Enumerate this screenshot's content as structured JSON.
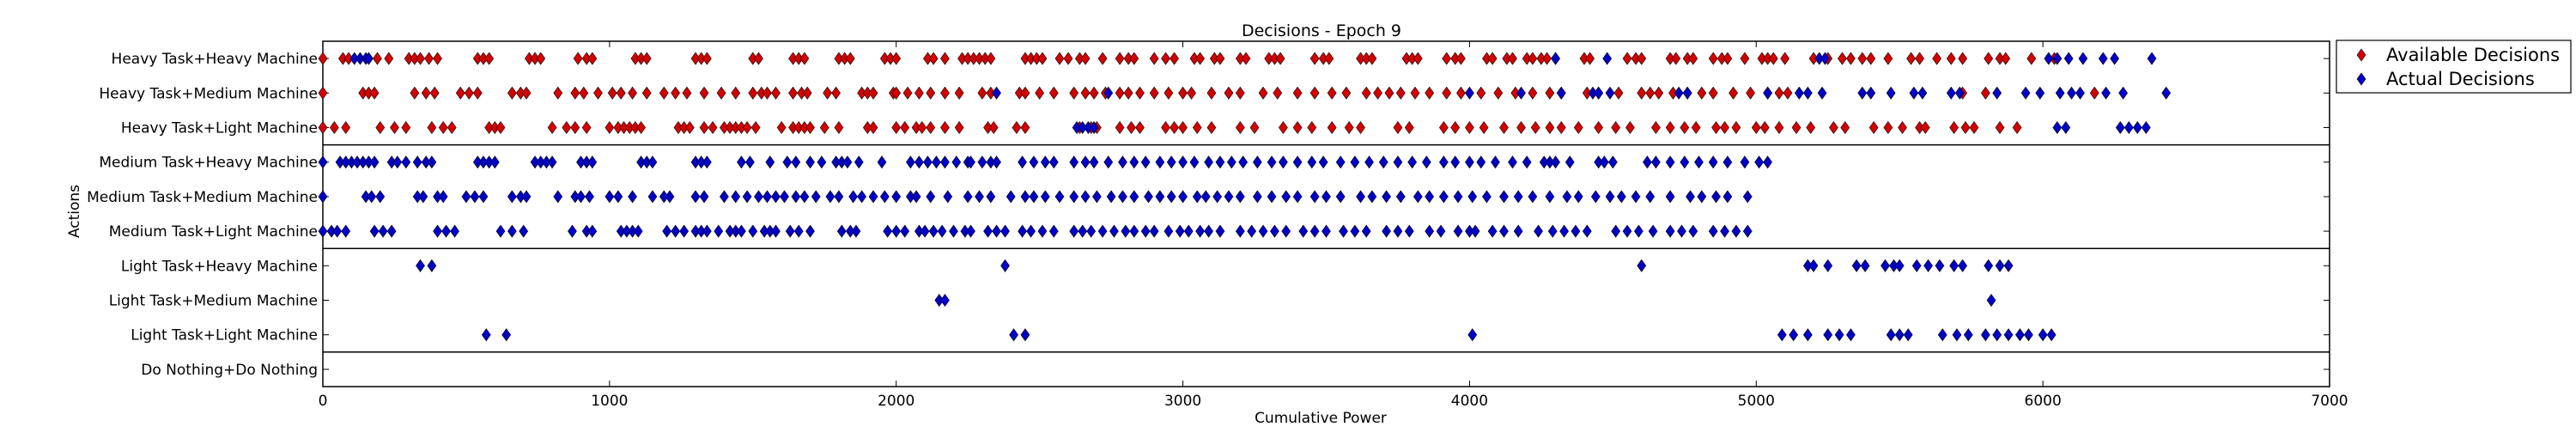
{
  "chart_data": {
    "type": "scatter",
    "title": "Decisions - Epoch 9",
    "xlabel": "Cumulative Power",
    "ylabel": "Actions",
    "xlim": [
      0,
      7000
    ],
    "x_ticks": [
      "0",
      "1000",
      "2000",
      "3000",
      "4000",
      "5000",
      "6000",
      "7000"
    ],
    "categories": [
      "Heavy Task+Heavy Machine",
      "Heavy Task+Medium Machine",
      "Heavy Task+Light Machine",
      "Medium Task+Heavy Machine",
      "Medium Task+Medium Machine",
      "Medium Task+Light Machine",
      "Light Task+Heavy Machine",
      "Light Task+Medium Machine",
      "Light Task+Light Machine",
      "Do Nothing+Do Nothing"
    ],
    "group_separators_after": [
      2,
      5,
      8
    ],
    "legend": {
      "position": "outside-top-right"
    },
    "series": [
      {
        "name": "Available Decisions",
        "color": "#d40000",
        "points": {
          "Heavy Task+Heavy Machine": [
            0,
            70,
            90,
            190,
            230,
            300,
            320,
            340,
            370,
            400,
            540,
            560,
            580,
            720,
            740,
            760,
            890,
            920,
            940,
            1090,
            1110,
            1130,
            1300,
            1320,
            1340,
            1500,
            1520,
            1640,
            1660,
            1680,
            1800,
            1820,
            1840,
            1960,
            1980,
            2000,
            2110,
            2130,
            2170,
            2230,
            2250,
            2270,
            2290,
            2310,
            2330,
            2450,
            2470,
            2490,
            2510,
            2570,
            2600,
            2640,
            2660,
            2720,
            2780,
            2810,
            2830,
            2900,
            2940,
            2970,
            3040,
            3060,
            3110,
            3130,
            3200,
            3220,
            3300,
            3320,
            3340,
            3460,
            3490,
            3510,
            3620,
            3640,
            3660,
            3780,
            3800,
            3820,
            3920,
            3950,
            3970,
            4060,
            4080,
            4130,
            4150,
            4200,
            4220,
            4250,
            4270,
            4300,
            4400,
            4420,
            4550,
            4580,
            4600,
            4700,
            4720,
            4760,
            4780,
            4850,
            4880,
            4900,
            4960,
            5020,
            5040,
            5060,
            5100,
            5200,
            5250,
            5300,
            5330,
            5370,
            5400,
            5460,
            5540,
            5570,
            5630,
            5680,
            5720,
            5810,
            5850,
            5870,
            5960,
            6040
          ],
          "Heavy Task+Medium Machine": [
            0,
            140,
            160,
            180,
            320,
            360,
            390,
            480,
            510,
            540,
            660,
            690,
            710,
            820,
            880,
            910,
            960,
            1010,
            1040,
            1080,
            1130,
            1190,
            1230,
            1270,
            1330,
            1390,
            1440,
            1500,
            1530,
            1550,
            1580,
            1640,
            1670,
            1690,
            1760,
            1790,
            1880,
            1900,
            1920,
            1990,
            2000,
            2040,
            2080,
            2120,
            2170,
            2220,
            2300,
            2330,
            2430,
            2450,
            2500,
            2550,
            2620,
            2660,
            2690,
            2730,
            2780,
            2810,
            2850,
            2900,
            2950,
            3000,
            3030,
            3100,
            3160,
            3200,
            3280,
            3330,
            3400,
            3460,
            3520,
            3570,
            3640,
            3680,
            3720,
            3760,
            3810,
            3860,
            3920,
            3970,
            4040,
            4100,
            4160,
            4220,
            4280,
            4320,
            4410,
            4450,
            4520,
            4600,
            4630,
            4660,
            4710,
            4760,
            4810,
            4850,
            4920,
            4980,
            5040,
            5080,
            5110,
            5720,
            5800,
            6180
          ],
          "Heavy Task+Light Machine": [
            0,
            40,
            80,
            200,
            250,
            290,
            380,
            420,
            450,
            580,
            600,
            620,
            800,
            850,
            880,
            920,
            1000,
            1030,
            1050,
            1070,
            1090,
            1110,
            1240,
            1260,
            1280,
            1330,
            1360,
            1400,
            1420,
            1440,
            1460,
            1480,
            1510,
            1600,
            1640,
            1660,
            1680,
            1700,
            1750,
            1800,
            1900,
            1920,
            2000,
            2030,
            2070,
            2090,
            2120,
            2170,
            2220,
            2320,
            2340,
            2420,
            2450,
            2640,
            2680,
            2700,
            2780,
            2820,
            2850,
            2940,
            2970,
            3000,
            3050,
            3100,
            3200,
            3250,
            3350,
            3400,
            3450,
            3520,
            3580,
            3620,
            3750,
            3790,
            3910,
            3950,
            4000,
            4050,
            4120,
            4180,
            4230,
            4280,
            4320,
            4380,
            4450,
            4510,
            4560,
            4650,
            4700,
            4750,
            4790,
            4860,
            4890,
            4930,
            5000,
            5030,
            5080,
            5140,
            5190,
            5270,
            5310,
            5410,
            5460,
            5510,
            5570,
            5590,
            5690,
            5730,
            5760,
            5850,
            5910
          ]
        }
      },
      {
        "name": "Actual Decisions",
        "color": "#0000c8",
        "points": {
          "Heavy Task+Heavy Machine": [
            110,
            130,
            150,
            160,
            4300,
            4480,
            5220,
            5240,
            6020,
            6050,
            6090,
            6140,
            6210,
            6250,
            6380
          ],
          "Heavy Task+Medium Machine": [
            2350,
            2740,
            4000,
            4180,
            4320,
            4430,
            4450,
            4490,
            4730,
            4760,
            5040,
            5150,
            5180,
            5230,
            5370,
            5400,
            5470,
            5550,
            5580,
            5680,
            5710,
            5840,
            5940,
            5990,
            6060,
            6100,
            6130,
            6220,
            6280,
            6430
          ],
          "Heavy Task+Light Machine": [
            2630,
            2650,
            2670,
            2690,
            6050,
            6080,
            6270,
            6300,
            6330,
            6360
          ],
          "Medium Task+Heavy Machine": [
            0,
            60,
            80,
            100,
            120,
            140,
            160,
            180,
            240,
            260,
            290,
            330,
            360,
            380,
            540,
            560,
            580,
            600,
            740,
            760,
            780,
            800,
            900,
            920,
            940,
            1110,
            1130,
            1150,
            1300,
            1320,
            1340,
            1460,
            1490,
            1560,
            1620,
            1650,
            1700,
            1740,
            1790,
            1810,
            1830,
            1870,
            1950,
            2050,
            2080,
            2110,
            2140,
            2170,
            2210,
            2250,
            2260,
            2300,
            2330,
            2350,
            2440,
            2480,
            2520,
            2550,
            2620,
            2660,
            2690,
            2740,
            2790,
            2830,
            2870,
            2920,
            2960,
            3000,
            3040,
            3090,
            3130,
            3170,
            3210,
            3260,
            3310,
            3350,
            3400,
            3450,
            3490,
            3550,
            3600,
            3650,
            3700,
            3750,
            3800,
            3850,
            3910,
            3950,
            4000,
            4040,
            4090,
            4150,
            4200,
            4260,
            4280,
            4300,
            4350,
            4450,
            4470,
            4500,
            4620,
            4650,
            4700,
            4750,
            4800,
            4850,
            4900,
            4960,
            5010,
            5040
          ],
          "Medium Task+Medium Machine": [
            0,
            150,
            170,
            200,
            330,
            350,
            400,
            420,
            500,
            530,
            560,
            660,
            690,
            710,
            820,
            880,
            900,
            930,
            1000,
            1030,
            1080,
            1150,
            1190,
            1210,
            1300,
            1330,
            1400,
            1440,
            1480,
            1520,
            1550,
            1580,
            1610,
            1650,
            1680,
            1720,
            1770,
            1800,
            1850,
            1880,
            1920,
            1960,
            2000,
            2050,
            2070,
            2120,
            2180,
            2250,
            2290,
            2330,
            2400,
            2450,
            2480,
            2520,
            2570,
            2620,
            2660,
            2700,
            2750,
            2790,
            2830,
            2880,
            2920,
            2960,
            3000,
            3050,
            3080,
            3120,
            3160,
            3200,
            3260,
            3310,
            3360,
            3400,
            3460,
            3500,
            3550,
            3620,
            3660,
            3710,
            3760,
            3820,
            3860,
            3910,
            3960,
            4010,
            4060,
            4120,
            4170,
            4220,
            4280,
            4340,
            4380,
            4440,
            4490,
            4530,
            4580,
            4630,
            4700,
            4770,
            4810,
            4860,
            4900,
            4970
          ],
          "Medium Task+Light Machine": [
            0,
            30,
            50,
            80,
            180,
            210,
            240,
            400,
            430,
            460,
            620,
            660,
            700,
            870,
            920,
            940,
            1040,
            1060,
            1080,
            1100,
            1200,
            1230,
            1260,
            1300,
            1320,
            1340,
            1380,
            1420,
            1440,
            1460,
            1500,
            1540,
            1560,
            1580,
            1630,
            1660,
            1700,
            1810,
            1840,
            1860,
            1970,
            2000,
            2030,
            2080,
            2100,
            2130,
            2160,
            2200,
            2240,
            2260,
            2320,
            2350,
            2380,
            2440,
            2470,
            2510,
            2550,
            2620,
            2650,
            2680,
            2720,
            2760,
            2800,
            2830,
            2870,
            2900,
            2950,
            2990,
            3020,
            3060,
            3090,
            3130,
            3200,
            3240,
            3280,
            3320,
            3360,
            3420,
            3460,
            3500,
            3560,
            3600,
            3640,
            3710,
            3750,
            3790,
            3860,
            3900,
            3960,
            4000,
            4020,
            4080,
            4120,
            4170,
            4240,
            4290,
            4330,
            4370,
            4410,
            4510,
            4550,
            4590,
            4640,
            4700,
            4740,
            4780,
            4850,
            4890,
            4930,
            4970
          ],
          "Light Task+Heavy Machine": [
            340,
            380,
            2380,
            4600,
            5180,
            5200,
            5250,
            5350,
            5380,
            5450,
            5480,
            5500,
            5560,
            5600,
            5640,
            5690,
            5720,
            5810,
            5850,
            5880
          ],
          "Light Task+Medium Machine": [
            2150,
            2170,
            5820
          ],
          "Light Task+Light Machine": [
            570,
            640,
            2410,
            2450,
            4010,
            5090,
            5130,
            5180,
            5250,
            5290,
            5330,
            5470,
            5500,
            5530,
            5650,
            5700,
            5740,
            5800,
            5840,
            5880,
            5920,
            5950,
            6000,
            6030
          ]
        }
      }
    ]
  }
}
